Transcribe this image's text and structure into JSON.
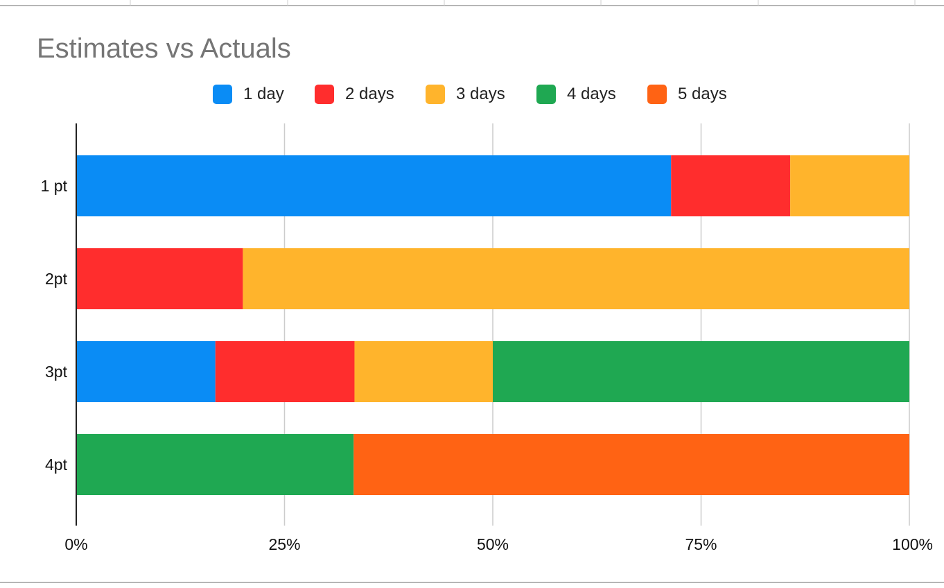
{
  "chart_data": {
    "type": "bar",
    "orientation": "horizontal",
    "stacked": "percent",
    "title": "Estimates vs Actuals",
    "xlabel": "",
    "ylabel": "",
    "xlim": [
      0,
      100
    ],
    "x_ticks": [
      "0%",
      "25%",
      "50%",
      "75%",
      "100%"
    ],
    "categories": [
      "1 pt",
      "2pt",
      "3pt",
      "4pt"
    ],
    "series": [
      {
        "name": "1 day",
        "color": "#0a8cf5",
        "values": [
          71.4,
          0,
          16.7,
          0
        ]
      },
      {
        "name": "2 days",
        "color": "#ff2d2d",
        "values": [
          14.3,
          20,
          16.7,
          0
        ]
      },
      {
        "name": "3 days",
        "color": "#ffb42c",
        "values": [
          14.3,
          80,
          16.6,
          0
        ]
      },
      {
        "name": "4 days",
        "color": "#1fa852",
        "values": [
          0,
          0,
          50,
          33.3
        ]
      },
      {
        "name": "5 days",
        "color": "#ff6314",
        "values": [
          0,
          0,
          0,
          66.7
        ]
      }
    ],
    "grid": true,
    "legend_position": "top-center"
  }
}
